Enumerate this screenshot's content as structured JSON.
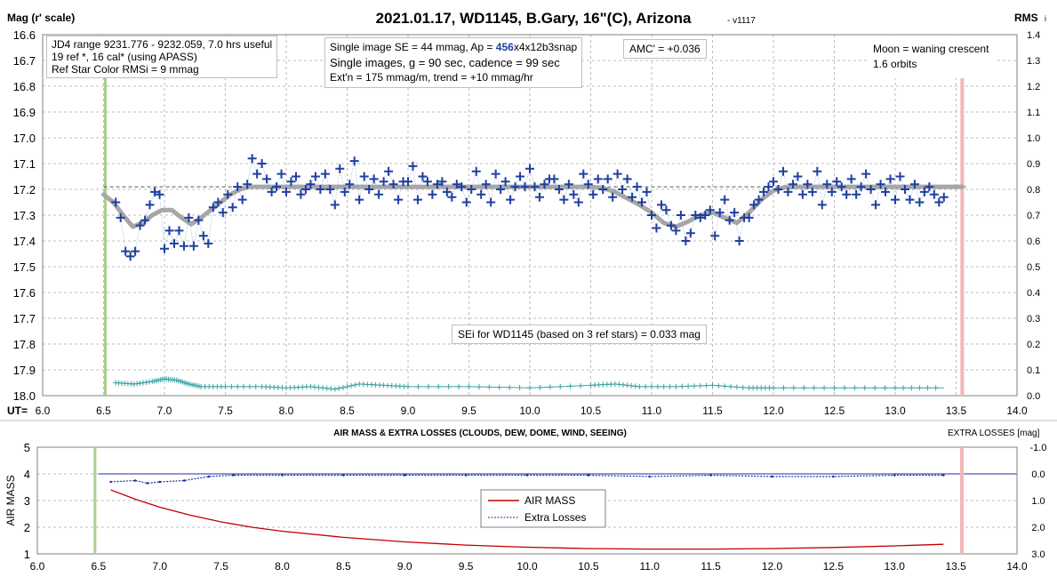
{
  "top_chart": {
    "title": "2021.01.17, WD1145, B.Gary, 16\"(C), Arizona",
    "version": "- v1117",
    "ylabel_left": "Mag (r' scale)",
    "ylabel_right_main": "RMS",
    "ylabel_right_sub": "i",
    "xlabel_prefix": "UT=",
    "notes": {
      "jd4": {
        "line1": "JD4 range 9231.776 - 9232.059, 7.0 hrs useful",
        "line2": " 19 ref *, 16 cal* (using APASS)",
        "line3": "Ref Star Color RMSi = 9 mmag"
      },
      "single": {
        "l1a": "Single image SE = 44 mmag, Ap = ",
        "l1b": "456",
        "l1c": "x4x12b3snap",
        "l2": "Single images, g = 90 sec, cadence = 99 sec",
        "l3": "Ext'n = 175 mmag/m, trend = +10 mmag/hr"
      },
      "amc": "AMC' = +0.036",
      "moon": {
        "line1": "Moon = waning crescent",
        "line2": "1.6 orbits"
      },
      "sei": "SEi for WD1145 (based on 3 ref stars) = 0.033 mag"
    }
  },
  "bottom_chart": {
    "title": "AIR MASS & EXTRA LOSSES (CLOUDS, DEW, DOME, WIND, SEEING)",
    "right_title": "EXTRA LOSSES [mag]",
    "ylabel_left": "AIR MASS",
    "legend": {
      "air_mass": "AIR MASS",
      "extra_losses": "Extra Losses"
    }
  },
  "colors": {
    "data_points": "#1f3f9f",
    "model_curve": "#a6a6a6",
    "rms_points": "#3fa3a3",
    "air_mass": "#c00000",
    "extra_losses": "#1f2f9f",
    "start_line": "#a9d08e",
    "end_line": "#f4b6b6",
    "gridline": "#bfbfbf"
  },
  "chart_data": [
    {
      "type": "scatter",
      "name": "WD1145 light curve",
      "title": "2021.01.17, WD1145, B.Gary, 16\"(C), Arizona",
      "xlabel": "UT=",
      "ylabel": "Mag (r' scale)",
      "xlim": [
        6.0,
        14.0
      ],
      "ylim": [
        18.0,
        16.6
      ],
      "y_inverted": true,
      "xticks": [
        "6.0",
        "6.5",
        "7.0",
        "7.5",
        "8.0",
        "8.5",
        "9.0",
        "9.5",
        "10.0",
        "10.5",
        "11.0",
        "11.5",
        "12.0",
        "12.5",
        "13.0",
        "13.5",
        "14.0"
      ],
      "yticks": [
        "16.6",
        "16.7",
        "16.8",
        "16.9",
        "17.0",
        "17.1",
        "17.2",
        "17.3",
        "17.4",
        "17.5",
        "17.6",
        "17.7",
        "17.8",
        "17.9",
        "18.0"
      ],
      "y2label": "RMS i",
      "y2lim": [
        0.0,
        1.4
      ],
      "y2ticks": [
        "0.0",
        "0.1",
        "0.2",
        "0.3",
        "0.4",
        "0.5",
        "0.6",
        "0.7",
        "0.8",
        "0.9",
        "1.0",
        "1.1",
        "1.2",
        "1.3",
        "1.4"
      ],
      "vertical_markers": [
        6.5,
        13.55
      ],
      "reference_level": 17.19,
      "magnitudes_x": [
        6.6,
        6.64,
        6.68,
        6.72,
        6.76,
        6.8,
        6.84,
        6.88,
        6.92,
        6.96,
        7.0,
        7.04,
        7.08,
        7.12,
        7.16,
        7.2,
        7.24,
        7.28,
        7.32,
        7.36,
        7.4,
        7.44,
        7.48,
        7.52,
        7.56,
        7.6,
        7.64,
        7.68,
        7.72,
        7.76,
        7.8,
        7.84,
        7.88,
        7.92,
        7.96,
        8.0,
        8.04,
        8.08,
        8.12,
        8.16,
        8.2,
        8.24,
        8.28,
        8.32,
        8.36,
        8.4,
        8.44,
        8.48,
        8.52,
        8.56,
        8.6,
        8.64,
        8.68,
        8.72,
        8.76,
        8.8,
        8.84,
        8.88,
        8.92,
        8.96,
        9.0,
        9.04,
        9.08,
        9.12,
        9.16,
        9.2,
        9.24,
        9.28,
        9.32,
        9.36,
        9.4,
        9.44,
        9.48,
        9.52,
        9.56,
        9.6,
        9.64,
        9.68,
        9.72,
        9.76,
        9.8,
        9.84,
        9.88,
        9.92,
        9.96,
        10.0,
        10.04,
        10.08,
        10.12,
        10.16,
        10.2,
        10.24,
        10.28,
        10.32,
        10.36,
        10.4,
        10.44,
        10.48,
        10.52,
        10.56,
        10.6,
        10.64,
        10.68,
        10.72,
        10.76,
        10.8,
        10.84,
        10.88,
        10.92,
        10.96,
        11.0,
        11.04,
        11.08,
        11.12,
        11.16,
        11.2,
        11.24,
        11.28,
        11.32,
        11.36,
        11.4,
        11.44,
        11.48,
        11.52,
        11.56,
        11.6,
        11.64,
        11.68,
        11.72,
        11.76,
        11.8,
        11.84,
        11.88,
        11.92,
        11.96,
        12.0,
        12.04,
        12.08,
        12.12,
        12.16,
        12.2,
        12.24,
        12.28,
        12.32,
        12.36,
        12.4,
        12.44,
        12.48,
        12.52,
        12.56,
        12.6,
        12.64,
        12.68,
        12.72,
        12.76,
        12.8,
        12.84,
        12.88,
        12.92,
        12.96,
        13.0,
        13.04,
        13.08,
        13.12,
        13.16,
        13.2,
        13.24,
        13.28,
        13.32,
        13.36,
        13.4
      ],
      "magnitudes_y": [
        17.25,
        17.31,
        17.44,
        17.46,
        17.44,
        17.34,
        17.32,
        17.26,
        17.21,
        17.22,
        17.43,
        17.36,
        17.41,
        17.36,
        17.42,
        17.31,
        17.42,
        17.32,
        17.38,
        17.41,
        17.27,
        17.25,
        17.29,
        17.22,
        17.27,
        17.19,
        17.24,
        17.18,
        17.08,
        17.14,
        17.1,
        17.16,
        17.21,
        17.19,
        17.14,
        17.21,
        17.17,
        17.15,
        17.22,
        17.2,
        17.18,
        17.15,
        17.2,
        17.14,
        17.2,
        17.26,
        17.12,
        17.21,
        17.18,
        17.09,
        17.24,
        17.15,
        17.2,
        17.16,
        17.22,
        17.17,
        17.13,
        17.18,
        17.24,
        17.17,
        17.17,
        17.11,
        17.24,
        17.15,
        17.17,
        17.22,
        17.18,
        17.17,
        17.21,
        17.23,
        17.18,
        17.19,
        17.25,
        17.2,
        17.13,
        17.22,
        17.18,
        17.25,
        17.14,
        17.2,
        17.17,
        17.24,
        17.19,
        17.15,
        17.19,
        17.12,
        17.19,
        17.23,
        17.18,
        17.16,
        17.16,
        17.2,
        17.24,
        17.18,
        17.22,
        17.25,
        17.14,
        17.18,
        17.22,
        17.16,
        17.2,
        17.16,
        17.23,
        17.14,
        17.2,
        17.16,
        17.23,
        17.19,
        17.25,
        17.21,
        17.3,
        17.35,
        17.26,
        17.28,
        17.34,
        17.36,
        17.3,
        17.4,
        17.37,
        17.3,
        17.31,
        17.3,
        17.28,
        17.38,
        17.29,
        17.24,
        17.32,
        17.29,
        17.4,
        17.31,
        17.31,
        17.26,
        17.24,
        17.21,
        17.19,
        17.17,
        17.2,
        17.13,
        17.21,
        17.18,
        17.15,
        17.22,
        17.18,
        17.21,
        17.13,
        17.26,
        17.18,
        17.21,
        17.17,
        17.19,
        17.22,
        17.16,
        17.22,
        17.19,
        17.14,
        17.2,
        17.26,
        17.18,
        17.21,
        17.16,
        17.24,
        17.15,
        17.2,
        17.24,
        17.18,
        17.25,
        17.21,
        17.19,
        17.22,
        17.25,
        17.23,
        17.27
      ],
      "model_x": [
        6.5,
        6.58,
        6.66,
        6.74,
        6.82,
        6.9,
        6.98,
        7.06,
        7.14,
        7.22,
        7.3,
        7.38,
        7.46,
        7.54,
        7.62,
        7.7,
        7.8,
        7.9,
        8.0,
        9.0,
        10.0,
        10.5,
        10.6,
        10.7,
        10.8,
        10.9,
        11.0,
        11.1,
        11.2,
        11.3,
        11.4,
        11.5,
        11.6,
        11.7,
        11.8,
        11.9,
        12.0,
        12.1,
        12.2,
        13.0,
        13.55
      ],
      "model_y": [
        17.22,
        17.25,
        17.3,
        17.345,
        17.33,
        17.3,
        17.28,
        17.28,
        17.31,
        17.335,
        17.31,
        17.28,
        17.25,
        17.22,
        17.2,
        17.19,
        17.19,
        17.19,
        17.19,
        17.19,
        17.19,
        17.19,
        17.195,
        17.21,
        17.235,
        17.26,
        17.29,
        17.33,
        17.345,
        17.325,
        17.3,
        17.29,
        17.31,
        17.33,
        17.29,
        17.24,
        17.205,
        17.19,
        17.19,
        17.19,
        17.19
      ],
      "rms_x": [
        6.6,
        6.75,
        6.9,
        7.0,
        7.1,
        7.2,
        7.3,
        7.5,
        7.8,
        8.0,
        8.2,
        8.4,
        8.6,
        8.8,
        9.0,
        9.5,
        10.0,
        10.5,
        10.7,
        10.9,
        11.2,
        11.5,
        11.8,
        12.0,
        12.5,
        13.0,
        13.4
      ],
      "rms_y": [
        0.05,
        0.045,
        0.055,
        0.065,
        0.06,
        0.045,
        0.035,
        0.035,
        0.035,
        0.03,
        0.035,
        0.025,
        0.045,
        0.04,
        0.035,
        0.035,
        0.03,
        0.04,
        0.045,
        0.035,
        0.035,
        0.04,
        0.03,
        0.03,
        0.03,
        0.03,
        0.03
      ]
    },
    {
      "type": "line",
      "name": "air mass & extra losses",
      "title": "AIR MASS & EXTRA LOSSES (CLOUDS, DEW, DOME, WIND, SEEING)",
      "ylabel": "AIR MASS",
      "xlim": [
        6.0,
        14.0
      ],
      "ylim": [
        1,
        5
      ],
      "xticks": [
        "6.0",
        "6.5",
        "7.0",
        "7.5",
        "8.0",
        "8.5",
        "9.0",
        "9.5",
        "10.0",
        "10.5",
        "11.0",
        "11.5",
        "12.0",
        "12.5",
        "13.0",
        "13.5",
        "14.0"
      ],
      "yticks": [
        "1",
        "2",
        "3",
        "4",
        "5"
      ],
      "y2label": "EXTRA LOSSES [mag]",
      "y2lim": [
        -1.0,
        3.0
      ],
      "y2_inverted": true,
      "y2ticks": [
        "-1.0",
        "0.0",
        "1.0",
        "2.0",
        "3.0"
      ],
      "vertical_markers": [
        6.5,
        13.55
      ],
      "series": [
        {
          "name": "AIR MASS",
          "x": [
            6.6,
            6.8,
            7.0,
            7.25,
            7.5,
            7.75,
            8.0,
            8.5,
            9.0,
            9.5,
            10.0,
            10.5,
            11.0,
            11.5,
            12.0,
            12.5,
            13.0,
            13.4
          ],
          "values": [
            3.4,
            3.05,
            2.75,
            2.45,
            2.2,
            2.0,
            1.85,
            1.62,
            1.45,
            1.33,
            1.25,
            1.2,
            1.18,
            1.18,
            1.2,
            1.24,
            1.3,
            1.36
          ]
        },
        {
          "name": "Extra Losses",
          "x": [
            6.6,
            6.8,
            6.9,
            7.0,
            7.2,
            7.4,
            7.6,
            8.0,
            8.5,
            9.0,
            9.5,
            10.0,
            10.5,
            11.0,
            11.5,
            12.0,
            12.5,
            13.0,
            13.4
          ],
          "values": [
            0.3,
            0.25,
            0.35,
            0.3,
            0.25,
            0.1,
            0.05,
            0.05,
            0.05,
            0.05,
            0.05,
            0.05,
            0.05,
            0.1,
            0.05,
            0.1,
            0.1,
            0.05,
            0.05
          ]
        }
      ]
    }
  ]
}
